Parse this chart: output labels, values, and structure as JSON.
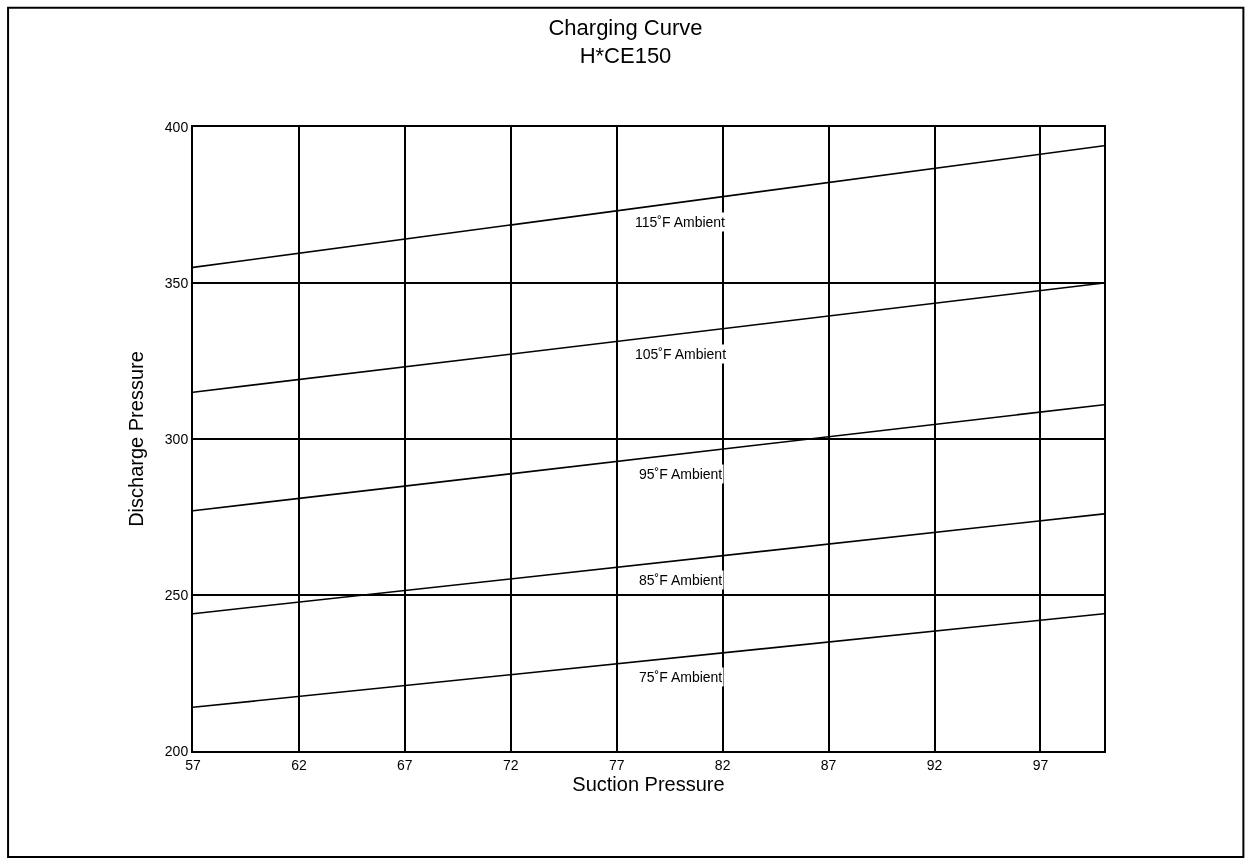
{
  "chart_data": {
    "type": "line",
    "title": "Charging Curve\nH*CE150",
    "xlabel": "Suction Pressure",
    "ylabel": "Discharge Pressure",
    "x": [
      57,
      100
    ],
    "series": [
      {
        "name": "115˚F Ambient",
        "color": "#000000",
        "values": [
          355,
          394
        ]
      },
      {
        "name": "105˚F Ambient",
        "color": "#000000",
        "values": [
          315,
          350
        ]
      },
      {
        "name": "95˚F Ambient",
        "color": "#000000",
        "values": [
          277,
          311
        ]
      },
      {
        "name": "85˚F Ambient",
        "color": "#000000",
        "values": [
          244,
          276
        ]
      },
      {
        "name": "75˚F Ambient",
        "color": "#000000",
        "values": [
          214,
          244
        ]
      }
    ],
    "xlim": [
      57,
      100
    ],
    "xticks": [
      57,
      62,
      67,
      72,
      77,
      82,
      87,
      92,
      97
    ],
    "ylim": [
      200,
      400
    ],
    "yticks": [
      200,
      250,
      300,
      350,
      400
    ],
    "grid": true,
    "legend": false,
    "marker": "none",
    "line_style": "solid"
  }
}
